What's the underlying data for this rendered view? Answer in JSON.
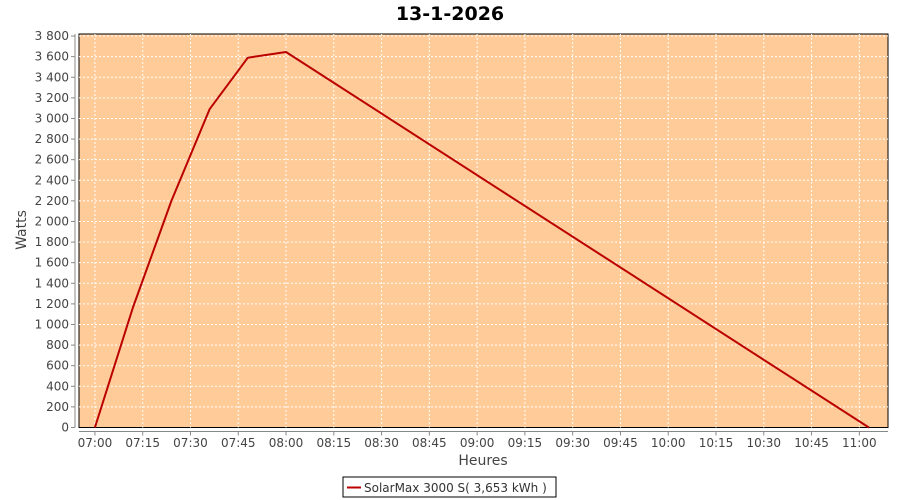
{
  "chart_data": {
    "type": "line",
    "title": "13-1-2026",
    "xlabel": "Heures",
    "ylabel": "Watts",
    "xlim": [
      "06:55",
      "11:09"
    ],
    "ylim": [
      0,
      3820
    ],
    "x_ticks": [
      "07:00",
      "07:15",
      "07:30",
      "07:45",
      "08:00",
      "08:15",
      "08:30",
      "08:45",
      "09:00",
      "09:15",
      "09:30",
      "09:45",
      "10:00",
      "10:15",
      "10:30",
      "10:45",
      "11:00"
    ],
    "y_ticks": [
      0,
      200,
      400,
      600,
      800,
      1000,
      1200,
      1400,
      1600,
      1800,
      2000,
      2200,
      2400,
      2600,
      2800,
      3000,
      3200,
      3400,
      3600,
      3800
    ],
    "y_tick_labels": [
      "0",
      "200",
      "400",
      "600",
      "800",
      "1 000",
      "1 200",
      "1 400",
      "1 600",
      "1 800",
      "2 000",
      "2 200",
      "2 400",
      "2 600",
      "2 800",
      "3 000",
      "3 200",
      "3 400",
      "3 600",
      "3 800"
    ],
    "grid": true,
    "legend_position": "bottom",
    "background_color": "#FFCC99",
    "series": [
      {
        "name": "SolarMax 3000 S( 3,653 kWh )",
        "color": "#BB0000",
        "x": [
          "07:00",
          "07:12",
          "07:24",
          "07:36",
          "07:48",
          "08:00",
          "11:03"
        ],
        "y": [
          0,
          1170,
          2200,
          3090,
          3590,
          3645,
          0
        ]
      }
    ]
  }
}
